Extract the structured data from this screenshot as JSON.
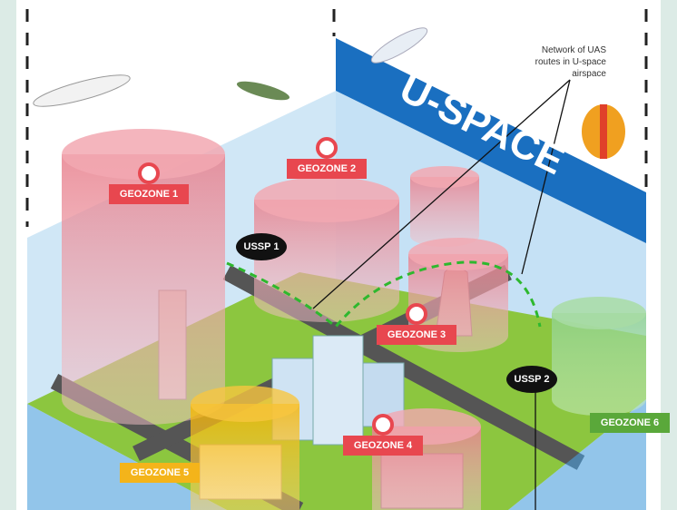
{
  "banner": "U-SPACE",
  "annotation": [
    "Network of UAS",
    "routes in U-space",
    "airspace"
  ],
  "geozones": [
    "GEOZONE 1",
    "GEOZONE 2",
    "GEOZONE 3",
    "GEOZONE 4",
    "GEOZONE 5",
    "GEOZONE 6"
  ],
  "service_providers": [
    "USSP 1",
    "USSP 2"
  ]
}
